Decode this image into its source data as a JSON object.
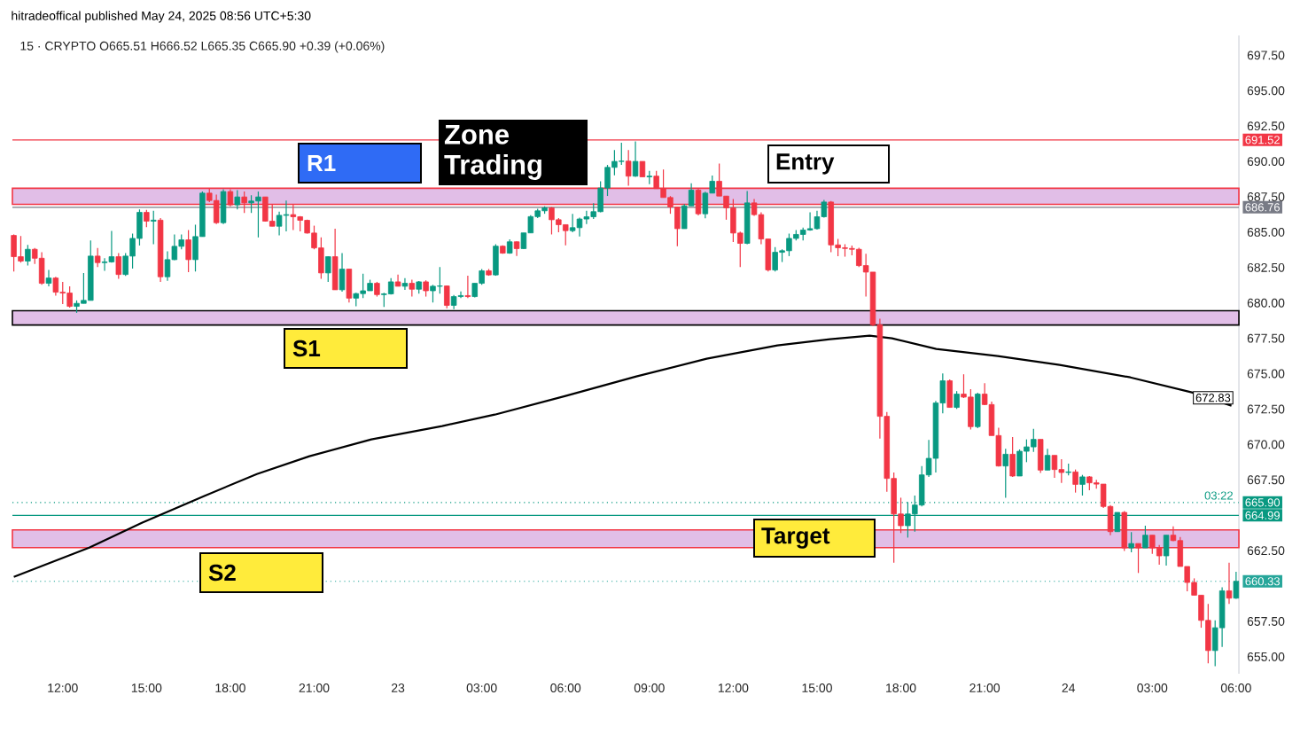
{
  "chart_data": {
    "type": "candlestick",
    "title": "hitradeoffical published May 24, 2025 08:56 UTC+5:30",
    "subtitle": "15 · CRYPTO  O665.51 H666.52 L665.35 C665.90 +0.39 (+0.06%)",
    "x": [
      "2025-05-22T10:15",
      "2025-05-22T10:30",
      "2025-05-22T10:45",
      "2025-05-22T11:00",
      "2025-05-22T11:15",
      "2025-05-22T11:30",
      "2025-05-22T11:45",
      "2025-05-22T12:00",
      "2025-05-22T12:15",
      "2025-05-22T12:30",
      "2025-05-22T12:45",
      "2025-05-22T13:00",
      "2025-05-22T13:15",
      "2025-05-22T13:30",
      "2025-05-22T13:45",
      "2025-05-22T14:00",
      "2025-05-22T14:15",
      "2025-05-22T14:30",
      "2025-05-22T14:45",
      "2025-05-22T15:00",
      "2025-05-22T15:15",
      "2025-05-22T15:30",
      "2025-05-22T15:45",
      "2025-05-22T16:00",
      "2025-05-22T16:15",
      "2025-05-22T16:30",
      "2025-05-22T16:45",
      "2025-05-22T17:00",
      "2025-05-22T17:15",
      "2025-05-22T17:30",
      "2025-05-22T17:45",
      "2025-05-22T18:00",
      "2025-05-22T18:15",
      "2025-05-22T18:30",
      "2025-05-22T18:45",
      "2025-05-22T19:00",
      "2025-05-22T19:15",
      "2025-05-22T19:30",
      "2025-05-22T19:45",
      "2025-05-22T20:00",
      "2025-05-22T20:15",
      "2025-05-22T20:30",
      "2025-05-22T20:45",
      "2025-05-22T21:00",
      "2025-05-22T21:15",
      "2025-05-22T21:30",
      "2025-05-22T21:45",
      "2025-05-22T22:00",
      "2025-05-22T22:15",
      "2025-05-22T22:30",
      "2025-05-22T22:45",
      "2025-05-22T23:00",
      "2025-05-22T23:15",
      "2025-05-22T23:30",
      "2025-05-22T23:45",
      "2025-05-23T00:00",
      "2025-05-23T00:15",
      "2025-05-23T00:30",
      "2025-05-23T00:45",
      "2025-05-23T01:00",
      "2025-05-23T01:15",
      "2025-05-23T01:30",
      "2025-05-23T01:45",
      "2025-05-23T02:00",
      "2025-05-23T02:15",
      "2025-05-23T02:30",
      "2025-05-23T02:45",
      "2025-05-23T03:00",
      "2025-05-23T03:15",
      "2025-05-23T03:30",
      "2025-05-23T03:45",
      "2025-05-23T04:00",
      "2025-05-23T04:15",
      "2025-05-23T04:30",
      "2025-05-23T04:45",
      "2025-05-23T05:00",
      "2025-05-23T05:15",
      "2025-05-23T05:30",
      "2025-05-23T05:45",
      "2025-05-23T06:00",
      "2025-05-23T06:15",
      "2025-05-23T06:30",
      "2025-05-23T06:45",
      "2025-05-23T07:00",
      "2025-05-23T07:15",
      "2025-05-23T07:30",
      "2025-05-23T07:45",
      "2025-05-23T08:00",
      "2025-05-23T08:15",
      "2025-05-23T08:30",
      "2025-05-23T08:45",
      "2025-05-23T09:00",
      "2025-05-23T09:15",
      "2025-05-23T09:30",
      "2025-05-23T09:45",
      "2025-05-23T10:00",
      "2025-05-23T10:15",
      "2025-05-23T10:30",
      "2025-05-23T10:45",
      "2025-05-23T11:00",
      "2025-05-23T11:15",
      "2025-05-23T11:30",
      "2025-05-23T11:45",
      "2025-05-23T12:00",
      "2025-05-23T12:15",
      "2025-05-23T12:30",
      "2025-05-23T12:45",
      "2025-05-23T13:00",
      "2025-05-23T13:15",
      "2025-05-23T13:30",
      "2025-05-23T13:45",
      "2025-05-23T14:00",
      "2025-05-23T14:15",
      "2025-05-23T14:30",
      "2025-05-23T14:45",
      "2025-05-23T15:00",
      "2025-05-23T15:15",
      "2025-05-23T15:30",
      "2025-05-23T15:45",
      "2025-05-23T16:00",
      "2025-05-23T16:15",
      "2025-05-23T16:30",
      "2025-05-23T16:45",
      "2025-05-23T17:00",
      "2025-05-23T17:15",
      "2025-05-23T17:30",
      "2025-05-23T17:45",
      "2025-05-23T18:00",
      "2025-05-23T18:15",
      "2025-05-23T18:30",
      "2025-05-23T18:45",
      "2025-05-23T19:00",
      "2025-05-23T19:15",
      "2025-05-23T19:30",
      "2025-05-23T19:45",
      "2025-05-23T20:00",
      "2025-05-23T20:15",
      "2025-05-23T20:30",
      "2025-05-23T20:45",
      "2025-05-23T21:00",
      "2025-05-23T21:15",
      "2025-05-23T21:30",
      "2025-05-23T21:45",
      "2025-05-23T22:00",
      "2025-05-23T22:15",
      "2025-05-23T22:30",
      "2025-05-23T22:45",
      "2025-05-23T23:00",
      "2025-05-23T23:15",
      "2025-05-23T23:30",
      "2025-05-23T23:45",
      "2025-05-24T00:00",
      "2025-05-24T00:15",
      "2025-05-24T00:30",
      "2025-05-24T00:45",
      "2025-05-24T01:00",
      "2025-05-24T01:15",
      "2025-05-24T01:30",
      "2025-05-24T01:45",
      "2025-05-24T02:00",
      "2025-05-24T02:15",
      "2025-05-24T02:30",
      "2025-05-24T02:45",
      "2025-05-24T03:00",
      "2025-05-24T03:15",
      "2025-05-24T03:30",
      "2025-05-24T03:45",
      "2025-05-24T04:00",
      "2025-05-24T04:15",
      "2025-05-24T04:30",
      "2025-05-24T04:45",
      "2025-05-24T05:00",
      "2025-05-24T05:15",
      "2025-05-24T05:30",
      "2025-05-24T05:45",
      "2025-05-24T06:00"
    ],
    "ohlc": [
      [
        684.77,
        684.84,
        682.22,
        683.27
      ],
      [
        683.27,
        684.73,
        682.85,
        682.96
      ],
      [
        682.96,
        684.1,
        682.64,
        683.79
      ],
      [
        683.79,
        683.89,
        682.75,
        683.16
      ],
      [
        683.16,
        683.58,
        681.28,
        681.39
      ],
      [
        681.39,
        682.33,
        681.18,
        681.76
      ],
      [
        681.76,
        681.85,
        680.51,
        680.76
      ],
      [
        680.76,
        681.49,
        679.92,
        680.7
      ],
      [
        680.7,
        681.18,
        679.67,
        679.76
      ],
      [
        679.76,
        680.18,
        679.3,
        679.97
      ],
      [
        679.97,
        682.12,
        679.97,
        680.18
      ],
      [
        680.18,
        684.42,
        680.18,
        683.31
      ],
      [
        683.31,
        683.89,
        682.54,
        682.85
      ],
      [
        682.85,
        683.16,
        682.27,
        682.9
      ],
      [
        682.9,
        685.09,
        682.85,
        683.27
      ],
      [
        683.27,
        683.52,
        681.7,
        682.01
      ],
      [
        682.01,
        683.52,
        681.91,
        683.31
      ],
      [
        683.31,
        684.9,
        682.43,
        684.56
      ],
      [
        684.56,
        686.61,
        684.06,
        686.4
      ],
      [
        686.4,
        686.57,
        685.36,
        685.78
      ],
      [
        685.78,
        686.51,
        684.15,
        685.85
      ],
      [
        685.85,
        685.99,
        681.49,
        681.85
      ],
      [
        681.85,
        683.64,
        681.56,
        683.06
      ],
      [
        683.06,
        684.84,
        683.02,
        684.0
      ],
      [
        684.0,
        684.84,
        683.79,
        684.46
      ],
      [
        684.46,
        685.15,
        682.18,
        683.06
      ],
      [
        683.06,
        685.53,
        682.22,
        684.69
      ],
      [
        684.69,
        687.87,
        684.69,
        687.76
      ],
      [
        687.76,
        688.07,
        687.13,
        687.24
      ],
      [
        687.24,
        687.66,
        685.57,
        685.67
      ],
      [
        685.67,
        688.03,
        685.57,
        687.87
      ],
      [
        687.87,
        688.03,
        686.82,
        686.93
      ],
      [
        686.93,
        687.97,
        686.61,
        687.49
      ],
      [
        687.49,
        687.87,
        686.36,
        687.07
      ],
      [
        687.07,
        687.61,
        686.36,
        687.2
      ],
      [
        687.2,
        687.87,
        684.63,
        687.49
      ],
      [
        687.49,
        687.49,
        685.74,
        685.78
      ],
      [
        685.78,
        686.93,
        685.42,
        685.42
      ],
      [
        685.42,
        686.45,
        684.77,
        686.19
      ],
      [
        686.19,
        687.24,
        685.05,
        686.24
      ],
      [
        686.24,
        686.93,
        685.15,
        686.09
      ],
      [
        686.09,
        686.13,
        685.05,
        685.84
      ],
      [
        685.84,
        685.88,
        684.9,
        684.94
      ],
      [
        684.94,
        685.46,
        683.79,
        683.89
      ],
      [
        683.89,
        684.63,
        681.7,
        682.12
      ],
      [
        682.12,
        683.31,
        681.49,
        683.27
      ],
      [
        683.27,
        685.25,
        680.93,
        680.93
      ],
      [
        680.93,
        683.52,
        680.8,
        682.39
      ],
      [
        682.39,
        682.39,
        680.03,
        680.34
      ],
      [
        680.34,
        680.72,
        679.76,
        680.66
      ],
      [
        680.66,
        682.06,
        680.34,
        680.86
      ],
      [
        680.86,
        681.64,
        680.86,
        681.39
      ],
      [
        681.39,
        681.49,
        680.45,
        680.59
      ],
      [
        680.59,
        680.72,
        679.72,
        680.64
      ],
      [
        680.64,
        681.76,
        680.59,
        681.49
      ],
      [
        681.49,
        682.01,
        681.18,
        681.18
      ],
      [
        681.18,
        681.76,
        680.93,
        681.39
      ],
      [
        681.39,
        681.64,
        680.45,
        680.97
      ],
      [
        680.97,
        681.55,
        680.66,
        681.49
      ],
      [
        681.49,
        681.6,
        680.45,
        680.86
      ],
      [
        680.86,
        681.28,
        680.03,
        681.18
      ],
      [
        681.18,
        682.54,
        680.66,
        681.2
      ],
      [
        681.2,
        681.23,
        679.62,
        679.83
      ],
      [
        679.83,
        680.56,
        679.56,
        680.45
      ],
      [
        680.45,
        680.81,
        680.35,
        680.52
      ],
      [
        680.52,
        681.92,
        680.35,
        680.45
      ],
      [
        680.45,
        681.39,
        680.39,
        681.39
      ],
      [
        681.39,
        682.4,
        681.29,
        682.27
      ],
      [
        682.27,
        682.4,
        681.92,
        681.98
      ],
      [
        681.98,
        684.15,
        681.92,
        684.01
      ],
      [
        684.01,
        684.07,
        683.48,
        683.52
      ],
      [
        683.52,
        684.49,
        683.48,
        684.32
      ],
      [
        684.32,
        684.36,
        683.32,
        683.84
      ],
      [
        683.84,
        684.95,
        683.8,
        684.95
      ],
      [
        684.95,
        686.2,
        684.95,
        686.1
      ],
      [
        686.1,
        686.66,
        685.99,
        686.51
      ],
      [
        686.51,
        686.83,
        686.3,
        686.72
      ],
      [
        686.72,
        686.78,
        684.84,
        685.88
      ],
      [
        685.88,
        685.99,
        684.99,
        685.53
      ],
      [
        685.53,
        685.53,
        684.07,
        685.11
      ],
      [
        685.11,
        686.3,
        684.99,
        685.32
      ],
      [
        685.32,
        686.03,
        684.7,
        685.93
      ],
      [
        685.93,
        686.51,
        685.57,
        686.09
      ],
      [
        686.09,
        687.04,
        685.93,
        686.45
      ],
      [
        686.45,
        688.6,
        686.41,
        688.12
      ],
      [
        688.12,
        689.75,
        687.56,
        689.58
      ],
      [
        689.58,
        690.8,
        689.02,
        690.0
      ],
      [
        690.0,
        691.32,
        689.75,
        690.02
      ],
      [
        690.02,
        690.8,
        688.29,
        688.96
      ],
      [
        688.96,
        691.42,
        688.91,
        690.0
      ],
      [
        690.0,
        690.0,
        688.91,
        688.91
      ],
      [
        688.91,
        689.33,
        688.39,
        688.96
      ],
      [
        688.96,
        689.33,
        688.08,
        688.08
      ],
      [
        688.08,
        689.43,
        687.45,
        687.45
      ],
      [
        687.45,
        687.55,
        686.3,
        686.78
      ],
      [
        686.78,
        686.78,
        684.0,
        685.25
      ],
      [
        685.25,
        686.99,
        685.25,
        686.86
      ],
      [
        686.86,
        688.45,
        686.86,
        687.97
      ],
      [
        687.97,
        688.07,
        686.19,
        686.3
      ],
      [
        686.3,
        687.86,
        685.98,
        687.76
      ],
      [
        687.76,
        689.01,
        687.76,
        688.6
      ],
      [
        688.6,
        689.85,
        687.55,
        687.55
      ],
      [
        687.55,
        687.55,
        685.88,
        686.72
      ],
      [
        686.72,
        687.34,
        684.31,
        684.94
      ],
      [
        684.94,
        685.04,
        682.54,
        684.21
      ],
      [
        684.21,
        687.91,
        684.15,
        687.07
      ],
      [
        687.07,
        687.34,
        686.15,
        686.24
      ],
      [
        686.24,
        686.4,
        684.15,
        684.52
      ],
      [
        684.52,
        684.52,
        682.22,
        682.33
      ],
      [
        682.33,
        683.94,
        682.22,
        683.58
      ],
      [
        683.58,
        683.79,
        682.89,
        683.69
      ],
      [
        683.69,
        684.9,
        683.31,
        684.56
      ],
      [
        684.56,
        685.15,
        684.42,
        684.84
      ],
      [
        684.84,
        685.32,
        684.42,
        685.15
      ],
      [
        685.15,
        686.4,
        685.11,
        685.25
      ],
      [
        685.25,
        686.51,
        685.19,
        686.09
      ],
      [
        686.09,
        687.28,
        686.03,
        687.13
      ],
      [
        687.13,
        687.2,
        683.58,
        684.1
      ],
      [
        684.1,
        684.52,
        683.31,
        683.9
      ],
      [
        683.9,
        684.15,
        683.27,
        683.85
      ],
      [
        683.85,
        684.06,
        683.37,
        683.79
      ],
      [
        683.79,
        683.9,
        682.54,
        682.64
      ],
      [
        682.64,
        683.48,
        680.45,
        682.18
      ],
      [
        682.18,
        682.18,
        678.36,
        678.46
      ],
      [
        678.46,
        678.88,
        670.42,
        671.99
      ],
      [
        671.99,
        672.3,
        666.66,
        667.6
      ],
      [
        667.6,
        668.02,
        661.65,
        665.09
      ],
      [
        665.09,
        666.24,
        663.74,
        664.26
      ],
      [
        664.26,
        665.93,
        663.42,
        665.09
      ],
      [
        665.09,
        666.39,
        663.84,
        665.72
      ],
      [
        665.72,
        668.48,
        665.62,
        667.85
      ],
      [
        667.85,
        670.32,
        667.71,
        669.02
      ],
      [
        669.02,
        673.08,
        668.02,
        672.93
      ],
      [
        672.93,
        675.02,
        672.2,
        674.5
      ],
      [
        674.5,
        674.6,
        672.62,
        672.62
      ],
      [
        672.62,
        673.77,
        672.51,
        673.56
      ],
      [
        673.56,
        674.96,
        673.28,
        673.35
      ],
      [
        673.35,
        673.91,
        671.05,
        671.26
      ],
      [
        671.26,
        673.66,
        671.15,
        673.56
      ],
      [
        673.56,
        674.33,
        672.78,
        672.82
      ],
      [
        672.82,
        673.03,
        670.63,
        670.63
      ],
      [
        670.63,
        671.19,
        668.44,
        668.48
      ],
      [
        668.48,
        669.69,
        666.24,
        669.31
      ],
      [
        669.31,
        670.53,
        667.71,
        667.77
      ],
      [
        667.77,
        669.65,
        667.77,
        669.52
      ],
      [
        669.52,
        670.36,
        668.75,
        669.83
      ],
      [
        669.83,
        671.11,
        669.48,
        670.36
      ],
      [
        670.36,
        670.36,
        667.98,
        668.19
      ],
      [
        668.19,
        669.69,
        668.19,
        669.23
      ],
      [
        669.23,
        669.23,
        667.64,
        668.23
      ],
      [
        668.23,
        668.96,
        667.29,
        668.02
      ],
      [
        668.02,
        668.65,
        667.81,
        668.06
      ],
      [
        668.06,
        668.23,
        666.6,
        667.18
      ],
      [
        667.18,
        667.85,
        666.39,
        667.71
      ],
      [
        667.71,
        667.77,
        666.76,
        667.29
      ],
      [
        667.29,
        667.5,
        666.87,
        667.2
      ],
      [
        667.2,
        667.2,
        665.51,
        665.62
      ],
      [
        665.62,
        665.72,
        663.59,
        663.84
      ],
      [
        663.84,
        665.2,
        663.84,
        665.2
      ],
      [
        665.2,
        665.3,
        662.48,
        662.69
      ],
      [
        662.69,
        663.8,
        662.38,
        663.0
      ],
      [
        663.0,
        663.0,
        660.92,
        662.69
      ],
      [
        662.69,
        664.26,
        662.69,
        663.59
      ],
      [
        663.59,
        663.59,
        662.27,
        662.69
      ],
      [
        662.69,
        662.9,
        661.5,
        662.13
      ],
      [
        662.13,
        663.59,
        661.44,
        663.59
      ],
      [
        663.59,
        664.22,
        663.17,
        663.21
      ],
      [
        663.21,
        663.46,
        661.38,
        661.38
      ],
      [
        661.38,
        661.38,
        659.62,
        660.25
      ],
      [
        660.25,
        660.54,
        659.35,
        659.35
      ],
      [
        659.35,
        659.35,
        657.05,
        657.57
      ],
      [
        657.57,
        658.73,
        654.54,
        655.44
      ],
      [
        655.44,
        657.57,
        654.33,
        657.05
      ],
      [
        657.05,
        659.91,
        655.69,
        659.66
      ],
      [
        659.66,
        661.65,
        658.73,
        659.14
      ],
      [
        659.14,
        661.0,
        659.1,
        660.33
      ]
    ],
    "series": [
      {
        "type": "line",
        "color": "#000000",
        "x": [
          "2025-05-22T10:15",
          "2025-05-22T12:57",
          "2025-05-22T14:50",
          "2025-05-22T17:03",
          "2025-05-22T18:57",
          "2025-05-22T20:50",
          "2025-05-22T23:03",
          "2025-05-23T01:35",
          "2025-05-23T03:28",
          "2025-05-23T06:00",
          "2025-05-23T08:32",
          "2025-05-23T11:03",
          "2025-05-23T13:35",
          "2025-05-23T15:28",
          "2025-05-23T16:53",
          "2025-05-23T17:41",
          "2025-05-23T19:16",
          "2025-05-23T21:28",
          "2025-05-23T23:41",
          "2025-05-24T02:13",
          "2025-05-24T04:25",
          "2025-05-24T05:50"
        ],
        "values": [
          660.64,
          662.71,
          664.47,
          666.35,
          667.91,
          669.17,
          670.36,
          671.3,
          672.11,
          673.43,
          674.81,
          676.06,
          677.0,
          677.44,
          677.69,
          677.5,
          676.75,
          676.25,
          675.62,
          674.74,
          673.68,
          672.74
        ]
      }
    ],
    "xlim": [
      "2025-05-22T10:12",
      "2025-05-24T06:06"
    ],
    "ylim": [
      653.8,
      698.9
    ],
    "xticks": [
      {
        "value": "2025-05-22T12:00",
        "label": "12:00"
      },
      {
        "value": "2025-05-22T15:00",
        "label": "15:00"
      },
      {
        "value": "2025-05-22T18:00",
        "label": "18:00"
      },
      {
        "value": "2025-05-22T21:00",
        "label": "21:00"
      },
      {
        "value": "2025-05-23T00:00",
        "label": "23"
      },
      {
        "value": "2025-05-23T03:00",
        "label": "03:00"
      },
      {
        "value": "2025-05-23T06:00",
        "label": "06:00"
      },
      {
        "value": "2025-05-23T09:00",
        "label": "09:00"
      },
      {
        "value": "2025-05-23T12:00",
        "label": "12:00"
      },
      {
        "value": "2025-05-23T15:00",
        "label": "15:00"
      },
      {
        "value": "2025-05-23T18:00",
        "label": "18:00"
      },
      {
        "value": "2025-05-23T21:00",
        "label": "21:00"
      },
      {
        "value": "2025-05-24T00:00",
        "label": "24"
      },
      {
        "value": "2025-05-24T03:00",
        "label": "03:00"
      },
      {
        "value": "2025-05-24T06:00",
        "label": "06:00"
      }
    ],
    "yticks": [
      {
        "value": 655,
        "label": "655.00"
      },
      {
        "value": 657.5,
        "label": "657.50"
      },
      {
        "value": 662.5,
        "label": "662.50"
      },
      {
        "value": 667.5,
        "label": "667.50"
      },
      {
        "value": 670,
        "label": "670.00"
      },
      {
        "value": 672.5,
        "label": "672.50"
      },
      {
        "value": 675,
        "label": "675.00"
      },
      {
        "value": 677.5,
        "label": "677.50"
      },
      {
        "value": 680,
        "label": "680.00"
      },
      {
        "value": 682.5,
        "label": "682.50"
      },
      {
        "value": 685,
        "label": "685.00"
      },
      {
        "value": 687.5,
        "label": "687.50"
      },
      {
        "value": 690,
        "label": "690.00"
      },
      {
        "value": 692.5,
        "label": "692.50"
      },
      {
        "value": 695,
        "label": "695.00"
      },
      {
        "value": 697.5,
        "label": "697.50"
      }
    ],
    "bands": [
      {
        "axis": "y",
        "from": 686.97,
        "to": 688.1,
        "color": "#f23645",
        "label": "R1"
      },
      {
        "axis": "y",
        "from": 678.44,
        "to": 679.45,
        "color": "#000000",
        "label": "S1"
      },
      {
        "axis": "y",
        "from": 662.71,
        "to": 663.96,
        "color": "#f23645",
        "label": "S2"
      }
    ],
    "ref_lines": [
      {
        "axis": "y",
        "value": 691.52,
        "label": "691.52",
        "color": "#f23645",
        "line_style": "solid"
      },
      {
        "axis": "y",
        "value": 686.76,
        "label": "686.76",
        "color": "#787b86",
        "line_style": "solid"
      },
      {
        "axis": "y",
        "value": 665.9,
        "label": "665.90",
        "color": "#089981",
        "line_style": "dotted"
      },
      {
        "axis": "y",
        "value": 664.99,
        "label": "664.99",
        "color": "#089981",
        "line_style": "solid"
      },
      {
        "axis": "y",
        "value": 660.33,
        "label": "660.33",
        "color": "#26a69a",
        "line_style": "dotted"
      }
    ],
    "annotations": [
      "Zone Trading",
      "Entry",
      "Target",
      {
        "text": "672.83",
        "x": "2025-05-24T05:54",
        "y": 672.83
      },
      "03:22"
    ]
  }
}
